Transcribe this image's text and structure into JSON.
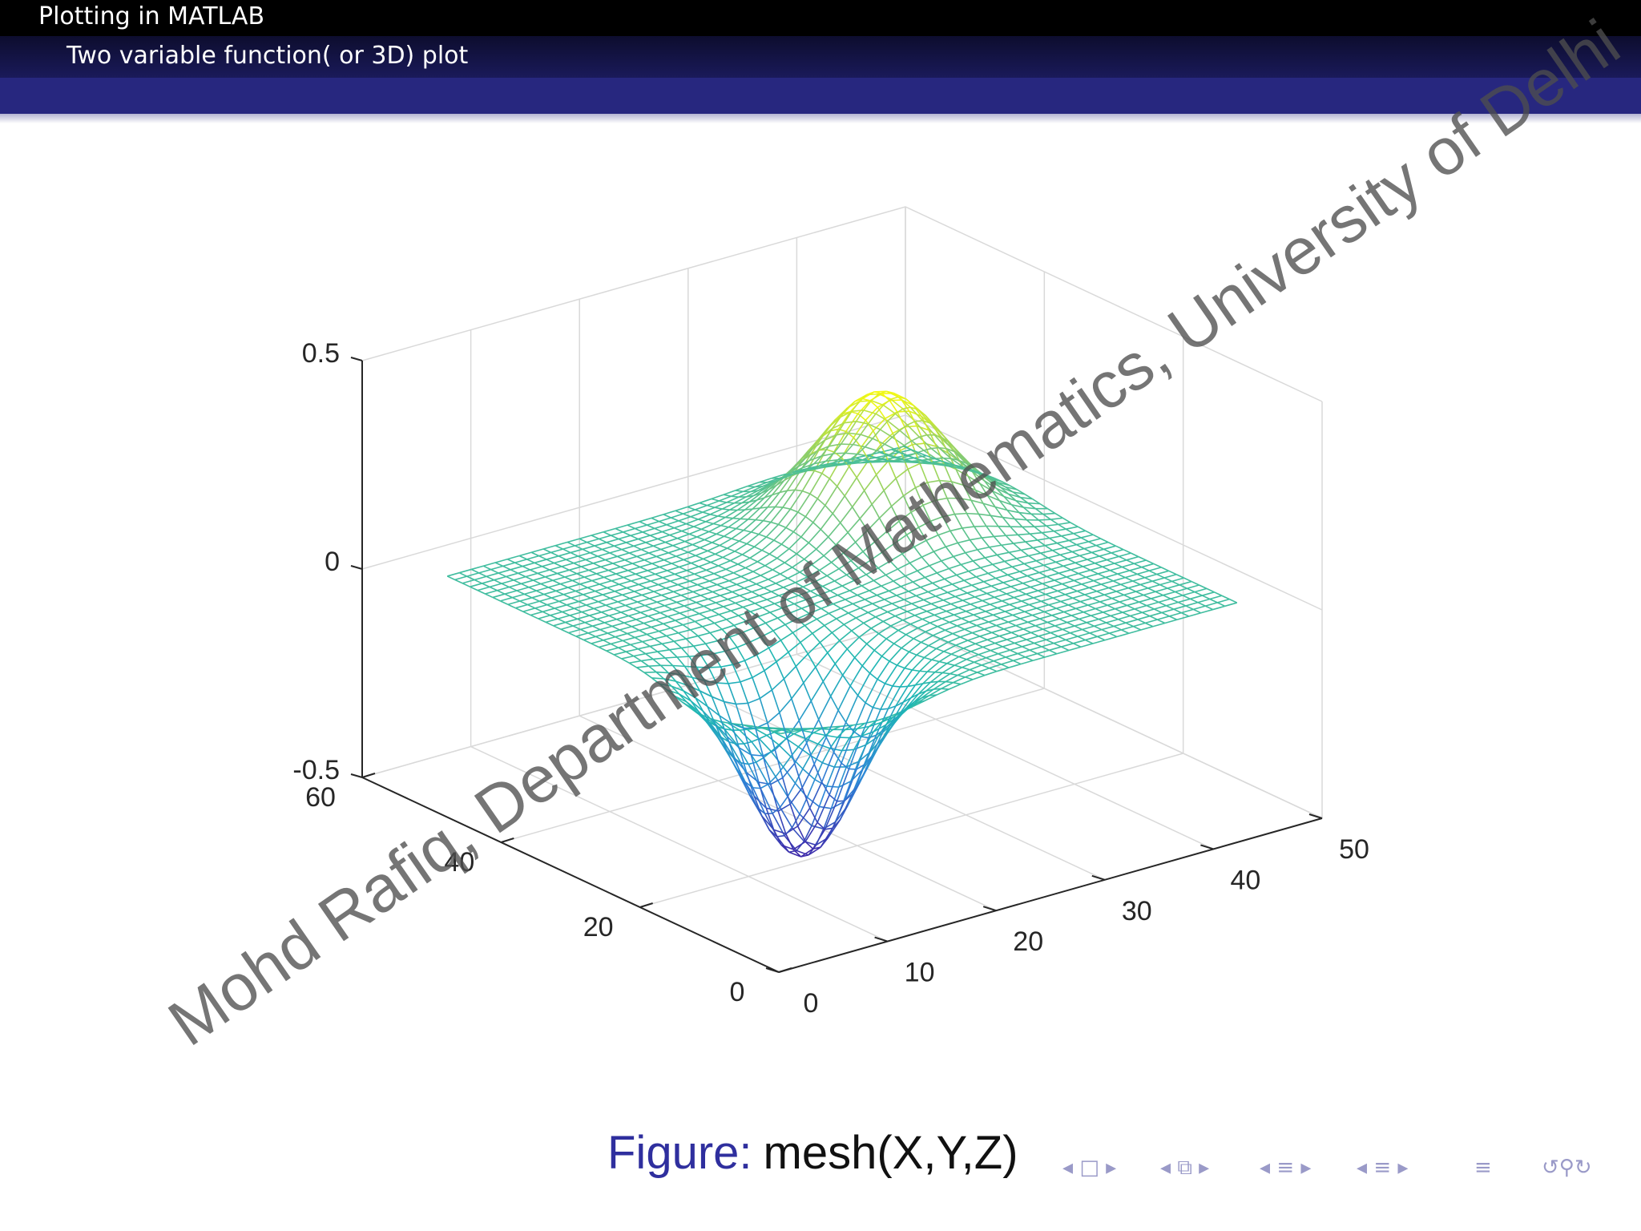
{
  "header": {
    "section": "Plotting in MATLAB",
    "subsection": "Two variable function( or 3D) plot"
  },
  "chart_data": {
    "type": "surface-mesh",
    "function_shape": "positive gaussian peak and negative gaussian trough on a flat plane (MATLAB mesh)",
    "zlim": [
      -0.5,
      0.5
    ],
    "x_ticks": [
      "0",
      "10",
      "20",
      "30",
      "40",
      "50"
    ],
    "y_ticks": [
      "0",
      "20",
      "40",
      "60"
    ],
    "z_ticks": [
      "-0.5",
      "0",
      "0.5"
    ],
    "peak_max": 0.32,
    "trough_min": -0.45,
    "colormap": [
      "#3e26a8",
      "#2e86d8",
      "#1fb7b4",
      "#81c975",
      "#f9fb0e"
    ],
    "grid": true
  },
  "watermark": "Mohd Rafiq, Department of Mathematics, University of Delhi",
  "caption": {
    "label": "Figure:",
    "text": "mesh(X,Y,Z)"
  },
  "nav_icons": [
    "frame-nav-icon",
    "subsection-nav-icon",
    "section-nav-icon",
    "slide-nav-icon",
    "align-icon",
    "search-zoom-icon"
  ]
}
